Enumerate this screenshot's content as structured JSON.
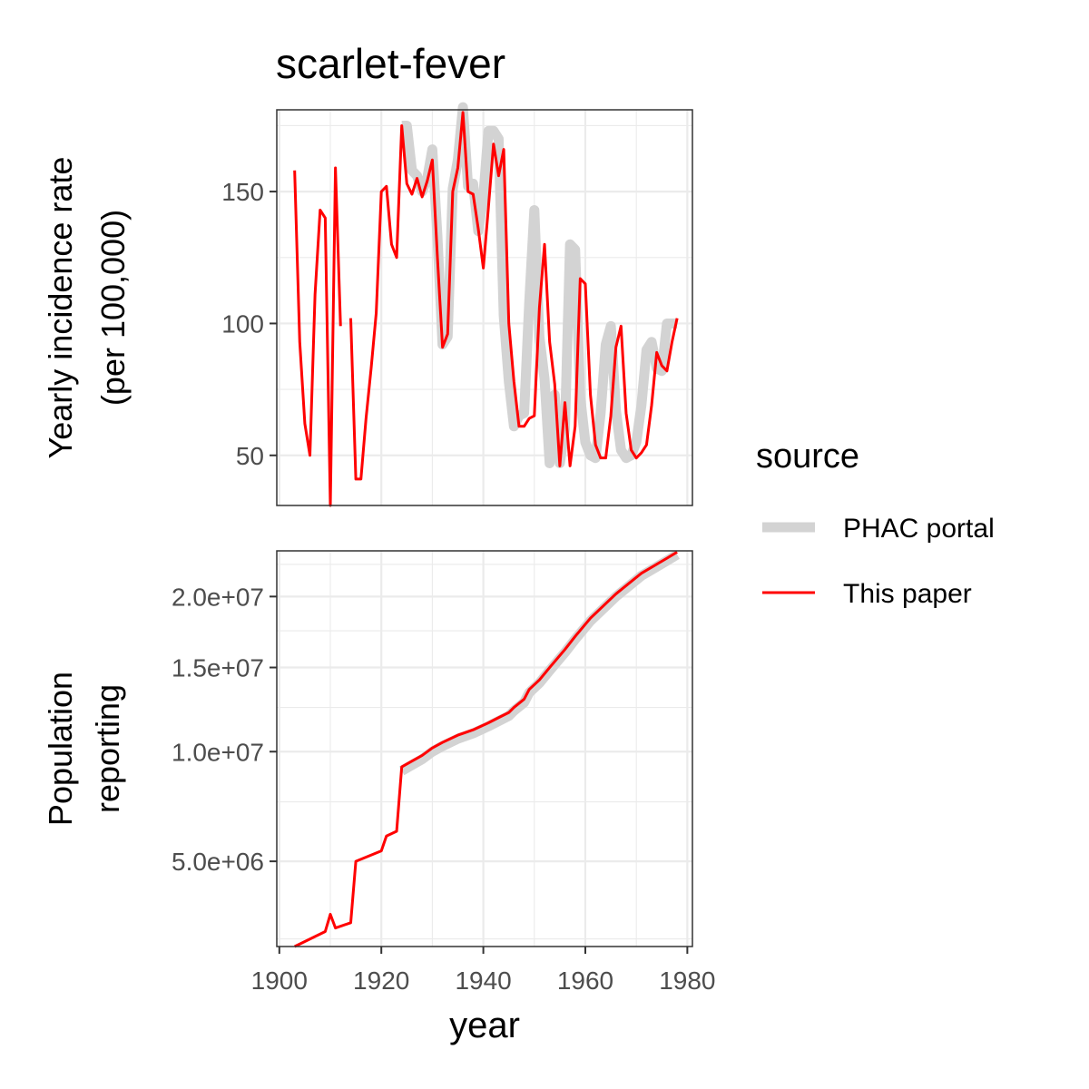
{
  "chart_data": [
    {
      "type": "line",
      "title": "scarlet-fever",
      "ylabel": [
        "Yearly incidence rate",
        "(per 100,000)"
      ],
      "xlabel": "year",
      "xlim": [
        1899.5,
        1981
      ],
      "ylim": [
        31,
        181
      ],
      "x_ticks": [
        1900,
        1920,
        1940,
        1960,
        1980
      ],
      "y_ticks": [
        50,
        100,
        150
      ],
      "y_tick_labels": [
        "50",
        "100",
        "150"
      ],
      "grid": true,
      "series": [
        {
          "name": "PHAC portal",
          "color": "#d3d3d3",
          "x": [
            1924,
            1925,
            1926,
            1927,
            1928,
            1929,
            1930,
            1931,
            1932,
            1933,
            1934,
            1935,
            1936,
            1937,
            1938,
            1939,
            1940,
            1941,
            1942,
            1943,
            1944,
            1945,
            1946,
            1947,
            1948,
            1949,
            1950,
            1951,
            1952,
            1953,
            1954,
            1955,
            1956,
            1957,
            1958,
            1959,
            1960,
            1961,
            1962,
            1963,
            1964,
            1965,
            1966,
            1967,
            1968,
            1969,
            1970,
            1971,
            1972,
            1973,
            1974,
            1975,
            1976,
            1977,
            1978
          ],
          "y": [
            175,
            175,
            158,
            156,
            150,
            155,
            166,
            133,
            92,
            95,
            151,
            162,
            182,
            152,
            153,
            135,
            148,
            173,
            173,
            170,
            103,
            78,
            61,
            65,
            66,
            108,
            143,
            95,
            79,
            47,
            73,
            47,
            60,
            130,
            128,
            72,
            55,
            50,
            49,
            66,
            92,
            99,
            67,
            52,
            49,
            50,
            55,
            69,
            90,
            93,
            83,
            82,
            100,
            100,
            100
          ]
        },
        {
          "name": "This paper",
          "color": "#ff0000",
          "x": [
            1903,
            1904,
            1905,
            1906,
            1907,
            1908,
            1909,
            1910,
            1911,
            1912,
            null,
            1914,
            1915,
            1916,
            1917,
            1918,
            1919,
            1920,
            1921,
            1922,
            1923,
            1924,
            1925,
            1926,
            1927,
            1928,
            1929,
            1930,
            1931,
            1932,
            1933,
            1934,
            1935,
            1936,
            1937,
            1938,
            1939,
            1940,
            1941,
            1942,
            1943,
            1944,
            1945,
            1946,
            1947,
            1948,
            1949,
            1950,
            1951,
            1952,
            1953,
            1954,
            1955,
            1956,
            1957,
            1958,
            1959,
            1960,
            1961,
            1962,
            1963,
            1964,
            1965,
            1966,
            1967,
            1968,
            1969,
            1970,
            1971,
            1972,
            1973,
            1974,
            1975,
            1976,
            1977,
            1978
          ],
          "y": [
            158,
            93,
            62,
            50,
            111,
            143,
            140,
            31,
            159,
            99,
            null,
            102,
            41,
            41,
            64,
            83,
            104,
            150,
            152,
            130,
            125,
            175,
            153,
            149,
            155,
            148,
            154,
            162,
            125,
            91,
            96,
            150,
            159,
            180,
            150,
            149,
            136,
            121,
            144,
            168,
            156,
            166,
            100,
            78,
            61,
            61,
            64,
            65,
            106,
            130,
            93,
            77,
            46,
            70,
            46,
            61,
            117,
            115,
            73,
            54,
            49,
            49,
            65,
            91,
            99,
            66,
            52,
            49,
            51,
            54,
            69,
            89,
            84,
            82,
            93,
            102
          ]
        }
      ]
    },
    {
      "type": "line",
      "title": "",
      "ylabel": [
        "Population",
        "reporting"
      ],
      "xlabel": "year",
      "xlim": [
        1899.5,
        1981
      ],
      "ylim": [
        2300000,
        23600000
      ],
      "y_scale": "sqrt",
      "x_ticks": [
        1900,
        1920,
        1940,
        1960,
        1980
      ],
      "x_tick_labels": [
        "1900",
        "1920",
        "1940",
        "1960",
        "1980"
      ],
      "y_ticks": [
        5000000,
        10000000,
        15000000,
        20000000
      ],
      "y_tick_labels": [
        "5.0e+06",
        "1.0e+07",
        "1.5e+07",
        "2.0e+07"
      ],
      "grid": true,
      "series": [
        {
          "name": "PHAC portal",
          "color": "#d3d3d3",
          "x": [
            1924,
            1926,
            1928,
            1930,
            1932,
            1935,
            1938,
            1941,
            1943,
            1945,
            1946,
            1948,
            1949,
            1951,
            1953,
            1956,
            1958,
            1961,
            1966,
            1971,
            1976,
            1978
          ],
          "y": [
            9000000,
            9300000,
            9600000,
            10000000,
            10300000,
            10700000,
            11000000,
            11400000,
            11700000,
            12000000,
            12300000,
            12800000,
            13400000,
            14000000,
            14800000,
            16000000,
            16900000,
            18200000,
            20000000,
            21600000,
            22800000,
            23300000
          ]
        },
        {
          "name": "This paper",
          "color": "#ff0000",
          "x": [
            1903,
            1909,
            1910,
            1911,
            1914,
            1915,
            1920,
            1921,
            1923,
            1924,
            1926,
            1928,
            1930,
            1932,
            1935,
            1938,
            1941,
            1943,
            1945,
            1946,
            1948,
            1949,
            1951,
            1953,
            1956,
            1958,
            1961,
            1966,
            1971,
            1976,
            1978
          ],
          "y": [
            2300000,
            2700000,
            3200000,
            2800000,
            2950000,
            5000000,
            5400000,
            6000000,
            6200000,
            9200000,
            9500000,
            9800000,
            10200000,
            10500000,
            10900000,
            11200000,
            11600000,
            11900000,
            12200000,
            12500000,
            13000000,
            13600000,
            14200000,
            15000000,
            16200000,
            17100000,
            18400000,
            20200000,
            21800000,
            23000000,
            23500000
          ]
        }
      ]
    }
  ],
  "legend": {
    "title": "source",
    "entries": [
      {
        "label": "PHAC portal",
        "color": "#d3d3d3"
      },
      {
        "label": "This paper",
        "color": "#ff0000"
      }
    ]
  }
}
